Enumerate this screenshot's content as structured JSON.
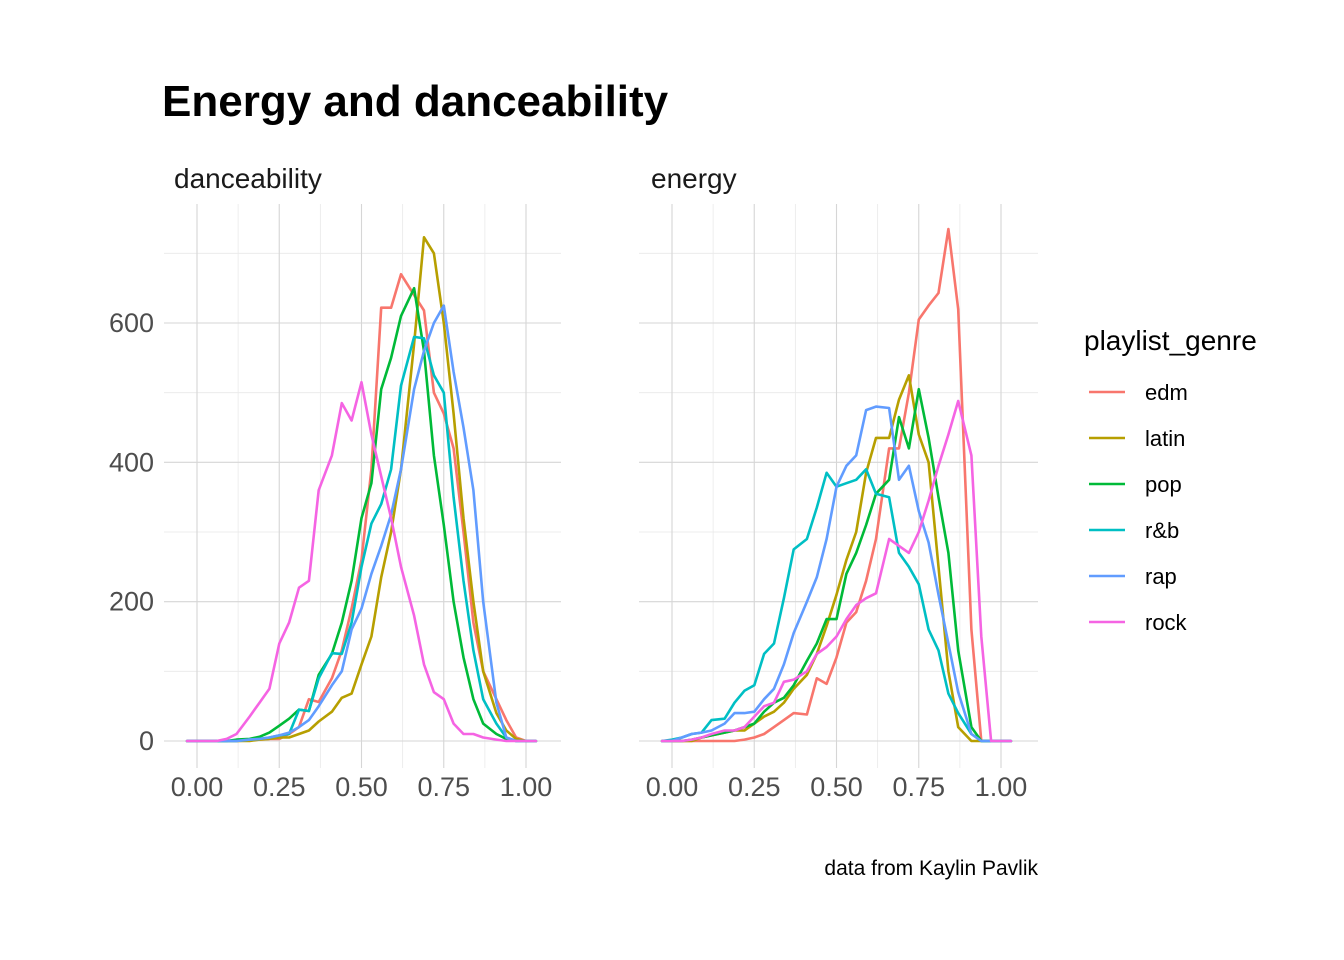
{
  "chart_data": {
    "type": "line",
    "title": "Energy and danceability",
    "caption": "data from Kaylin Pavlik",
    "xlim": [
      -0.05,
      1.05
    ],
    "ylim": [
      -40,
      770
    ],
    "x_ticks": [
      0,
      0.25,
      0.5,
      0.75,
      1
    ],
    "x_tick_labels": [
      "0.00",
      "0.25",
      "0.50",
      "0.75",
      "1.00"
    ],
    "y_ticks": [
      0,
      200,
      400,
      600
    ],
    "y_tick_labels": [
      "0",
      "200",
      "400",
      "600"
    ],
    "grid": true,
    "legend": {
      "title": "playlist_genre",
      "position": "right"
    },
    "colors": {
      "edm": "#F8766D",
      "latin": "#B79F00",
      "pop": "#00BA38",
      "r&b": "#00BFC4",
      "rap": "#619CFF",
      "rock": "#F564E3"
    },
    "series_names": [
      "edm",
      "latin",
      "pop",
      "r&b",
      "rap",
      "rock"
    ],
    "x": [
      -0.03,
      0.0,
      0.03,
      0.06,
      0.09,
      0.12,
      0.16,
      0.19,
      0.22,
      0.25,
      0.28,
      0.31,
      0.34,
      0.37,
      0.41,
      0.44,
      0.47,
      0.5,
      0.53,
      0.56,
      0.59,
      0.62,
      0.66,
      0.69,
      0.72,
      0.75,
      0.78,
      0.81,
      0.84,
      0.87,
      0.91,
      0.94,
      0.97,
      1.0,
      1.03
    ],
    "panels": [
      {
        "label": "danceability",
        "series": [
          {
            "name": "edm",
            "values": [
              0,
              0,
              0,
              0,
              0,
              0,
              1,
              2,
              3,
              3,
              10,
              20,
              60,
              56,
              90,
              130,
              190,
              260,
              390,
              622,
              622,
              670,
              640,
              618,
              500,
              470,
              420,
              300,
              170,
              100,
              60,
              30,
              5,
              0,
              0
            ]
          },
          {
            "name": "latin",
            "values": [
              0,
              0,
              0,
              0,
              0,
              0,
              0,
              2,
              3,
              5,
              5,
              10,
              15,
              28,
              42,
              62,
              68,
              110,
              150,
              235,
              300,
              390,
              570,
              723,
              700,
              600,
              470,
              320,
              200,
              100,
              40,
              15,
              3,
              0,
              0
            ]
          },
          {
            "name": "pop",
            "values": [
              0,
              0,
              0,
              0,
              0,
              2,
              3,
              6,
              12,
              22,
              32,
              45,
              43,
              95,
              125,
              170,
              230,
              320,
              370,
              505,
              550,
              610,
              650,
              560,
              410,
              310,
              200,
              120,
              60,
              25,
              10,
              3,
              0,
              0,
              0
            ]
          },
          {
            "name": "r&b",
            "values": [
              0,
              0,
              0,
              0,
              0,
              0,
              2,
              3,
              5,
              8,
              10,
              45,
              43,
              90,
              126,
              125,
              170,
              250,
              312,
              340,
              390,
              510,
              580,
              578,
              525,
              500,
              350,
              230,
              130,
              60,
              25,
              5,
              0,
              0,
              0
            ]
          },
          {
            "name": "rap",
            "values": [
              0,
              0,
              0,
              0,
              0,
              0,
              2,
              3,
              5,
              8,
              12,
              20,
              30,
              50,
              80,
              100,
              160,
              190,
              240,
              280,
              325,
              390,
              505,
              560,
              600,
              625,
              530,
              450,
              360,
              200,
              55,
              5,
              0,
              0,
              0
            ]
          },
          {
            "name": "rock",
            "values": [
              0,
              0,
              0,
              0,
              3,
              10,
              35,
              55,
              75,
              140,
              170,
              220,
              230,
              360,
              410,
              485,
              460,
              515,
              440,
              380,
              320,
              250,
              180,
              110,
              70,
              60,
              25,
              10,
              10,
              5,
              2,
              0,
              0,
              0,
              0
            ]
          }
        ]
      },
      {
        "label": "energy",
        "series": [
          {
            "name": "edm",
            "values": [
              0,
              0,
              0,
              0,
              0,
              0,
              0,
              0,
              2,
              5,
              10,
              20,
              30,
              40,
              38,
              90,
              82,
              120,
              170,
              185,
              230,
              290,
              420,
              420,
              500,
              605,
              625,
              643,
              735,
              620,
              160,
              0,
              0,
              0,
              0
            ]
          },
          {
            "name": "latin",
            "values": [
              0,
              0,
              0,
              0,
              5,
              8,
              12,
              15,
              15,
              25,
              35,
              42,
              55,
              75,
              95,
              125,
              165,
              210,
              260,
              300,
              385,
              435,
              435,
              490,
              525,
              440,
              400,
              250,
              100,
              20,
              0,
              0,
              0,
              0,
              0
            ]
          },
          {
            "name": "pop",
            "values": [
              0,
              0,
              0,
              2,
              5,
              8,
              12,
              15,
              20,
              25,
              42,
              55,
              62,
              80,
              115,
              140,
              175,
              175,
              240,
              270,
              310,
              355,
              375,
              465,
              420,
              505,
              435,
              350,
              270,
              130,
              20,
              0,
              0,
              0,
              0
            ]
          },
          {
            "name": "r&b",
            "values": [
              0,
              2,
              5,
              10,
              12,
              30,
              32,
              55,
              72,
              80,
              125,
              140,
              205,
              275,
              290,
              335,
              385,
              365,
              370,
              375,
              390,
              355,
              350,
              270,
              250,
              225,
              160,
              130,
              68,
              40,
              10,
              0,
              0,
              0,
              0
            ]
          },
          {
            "name": "rap",
            "values": [
              0,
              0,
              5,
              10,
              12,
              15,
              25,
              40,
              40,
              42,
              60,
              75,
              110,
              155,
              200,
              235,
              290,
              365,
              395,
              410,
              475,
              480,
              478,
              375,
              395,
              330,
              285,
              210,
              140,
              70,
              10,
              0,
              0,
              0,
              0
            ]
          },
          {
            "name": "rock",
            "values": [
              0,
              0,
              0,
              2,
              5,
              10,
              15,
              15,
              20,
              35,
              50,
              55,
              85,
              88,
              100,
              125,
              135,
              150,
              175,
              195,
              205,
              212,
              290,
              280,
              270,
              300,
              345,
              395,
              440,
              488,
              410,
              150,
              0,
              0,
              0
            ]
          }
        ]
      }
    ]
  }
}
